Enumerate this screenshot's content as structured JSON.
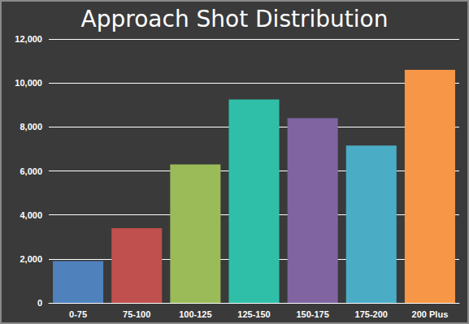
{
  "chart_data": {
    "type": "bar",
    "title": "Approach Shot Distribution",
    "categories": [
      "0-75",
      "75-100",
      "100-125",
      "125-150",
      "150-175",
      "175-200",
      "200 Plus"
    ],
    "values": [
      1900,
      3400,
      6300,
      9250,
      8400,
      7150,
      10600
    ],
    "colors": [
      "#4f81bd",
      "#c0504d",
      "#9bbb59",
      "#2fbfa8",
      "#8064a2",
      "#4bacc6",
      "#f79646"
    ],
    "ylim": [
      0,
      12000
    ],
    "yticks": [
      0,
      {
        "value": 2000,
        "label": "2,000"
      },
      {
        "value": 4000,
        "label": "4,000"
      },
      {
        "value": 6000,
        "label": "6,000"
      },
      {
        "value": 8000,
        "label": "8,000"
      },
      {
        "value": 10000,
        "label": "10,000"
      },
      {
        "value": 12000,
        "label": "12,000"
      }
    ],
    "grid": true
  }
}
